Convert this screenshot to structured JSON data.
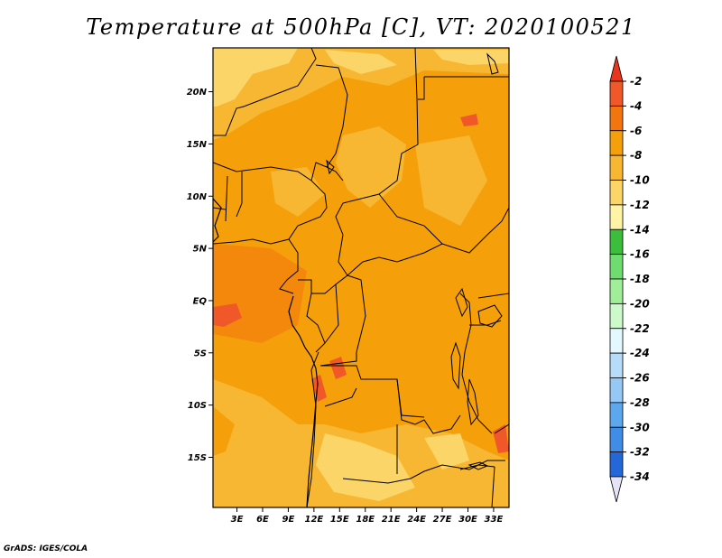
{
  "title": "Temperature at 500hPa [C], VT: 2020100521",
  "credit": "GrADS: IGES/COLA",
  "map": {
    "lat_ticks": [
      {
        "lat": 20,
        "label": "20N"
      },
      {
        "lat": 15,
        "label": "15N"
      },
      {
        "lat": 10,
        "label": "10N"
      },
      {
        "lat": 5,
        "label": "5N"
      },
      {
        "lat": 0,
        "label": "EQ"
      },
      {
        "lat": -5,
        "label": "5S"
      },
      {
        "lat": -10,
        "label": "10S"
      },
      {
        "lat": -15,
        "label": "15S"
      }
    ],
    "lon_ticks": [
      {
        "lon": 3,
        "label": "3E"
      },
      {
        "lon": 6,
        "label": "6E"
      },
      {
        "lon": 9,
        "label": "9E"
      },
      {
        "lon": 12,
        "label": "12E"
      },
      {
        "lon": 15,
        "label": "15E"
      },
      {
        "lon": 18,
        "label": "18E"
      },
      {
        "lon": 21,
        "label": "21E"
      },
      {
        "lon": 24,
        "label": "24E"
      },
      {
        "lon": 27,
        "label": "27E"
      },
      {
        "lon": 30,
        "label": "30E"
      },
      {
        "lon": 33,
        "label": "33E"
      }
    ],
    "lon_range": [
      0.2,
      34.8
    ],
    "lat_range": [
      -19.8,
      24.2
    ]
  },
  "colorbar": {
    "labels": [
      "-2",
      "-4",
      "-6",
      "-8",
      "-10",
      "-12",
      "-14",
      "-16",
      "-18",
      "-20",
      "-22",
      "-24",
      "-26",
      "-28",
      "-30",
      "-32",
      "-34"
    ],
    "colors": [
      "#f0582a",
      "#f3750f",
      "#f5a00a",
      "#f7b733",
      "#fbd567",
      "#fff4a6",
      "#3cbd3c",
      "#6fdc6f",
      "#a0ef98",
      "#cdfacb",
      "#e4f8ff",
      "#b6dcfa",
      "#96c8f5",
      "#5da7ef",
      "#3f8de6",
      "#2467d9",
      "#1a4dbf",
      "#123aa0",
      "#0b1f6e"
    ],
    "top_color": "#e8361c",
    "bottom_color": "#e4e4f6"
  }
}
